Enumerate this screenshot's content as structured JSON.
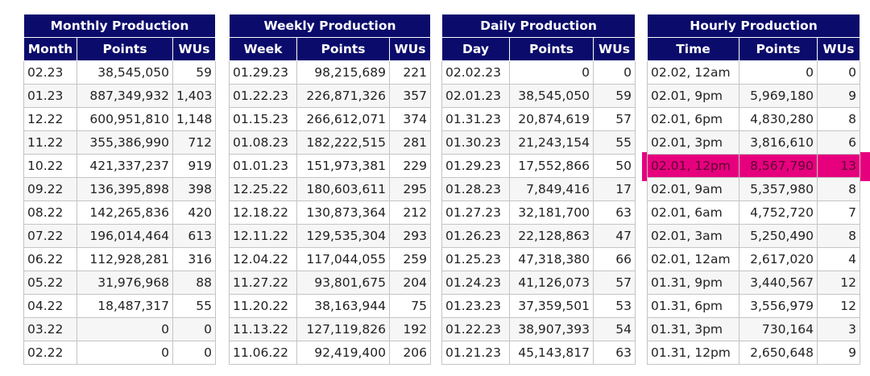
{
  "monthly": {
    "title": "Monthly Production",
    "headers": [
      "Month",
      "Points",
      "WUs"
    ],
    "rows": [
      [
        "02.23",
        "38,545,050",
        "59"
      ],
      [
        "01.23",
        "887,349,932",
        "1,403"
      ],
      [
        "12.22",
        "600,951,810",
        "1,148"
      ],
      [
        "11.22",
        "355,386,990",
        "712"
      ],
      [
        "10.22",
        "421,337,237",
        "919"
      ],
      [
        "09.22",
        "136,395,898",
        "398"
      ],
      [
        "08.22",
        "142,265,836",
        "420"
      ],
      [
        "07.22",
        "196,014,464",
        "613"
      ],
      [
        "06.22",
        "112,928,281",
        "316"
      ],
      [
        "05.22",
        "31,976,968",
        "88"
      ],
      [
        "04.22",
        "18,487,317",
        "55"
      ],
      [
        "03.22",
        "0",
        "0"
      ],
      [
        "02.22",
        "0",
        "0"
      ]
    ]
  },
  "weekly": {
    "title": "Weekly Production",
    "headers": [
      "Week",
      "Points",
      "WUs"
    ],
    "rows": [
      [
        "01.29.23",
        "98,215,689",
        "221"
      ],
      [
        "01.22.23",
        "226,871,326",
        "357"
      ],
      [
        "01.15.23",
        "266,612,071",
        "374"
      ],
      [
        "01.08.23",
        "182,222,515",
        "281"
      ],
      [
        "01.01.23",
        "151,973,381",
        "229"
      ],
      [
        "12.25.22",
        "180,603,611",
        "295"
      ],
      [
        "12.18.22",
        "130,873,364",
        "212"
      ],
      [
        "12.11.22",
        "129,535,304",
        "293"
      ],
      [
        "12.04.22",
        "117,044,055",
        "259"
      ],
      [
        "11.27.22",
        "93,801,675",
        "204"
      ],
      [
        "11.20.22",
        "38,163,944",
        "75"
      ],
      [
        "11.13.22",
        "127,119,826",
        "192"
      ],
      [
        "11.06.22",
        "92,419,400",
        "206"
      ]
    ]
  },
  "daily": {
    "title": "Daily Production",
    "headers": [
      "Day",
      "Points",
      "WUs"
    ],
    "rows": [
      [
        "02.02.23",
        "0",
        "0"
      ],
      [
        "02.01.23",
        "38,545,050",
        "59"
      ],
      [
        "01.31.23",
        "20,874,619",
        "57"
      ],
      [
        "01.30.23",
        "21,243,154",
        "55"
      ],
      [
        "01.29.23",
        "17,552,866",
        "50"
      ],
      [
        "01.28.23",
        "7,849,416",
        "17"
      ],
      [
        "01.27.23",
        "32,181,700",
        "63"
      ],
      [
        "01.26.23",
        "22,128,863",
        "47"
      ],
      [
        "01.25.23",
        "47,318,380",
        "66"
      ],
      [
        "01.24.23",
        "41,126,073",
        "57"
      ],
      [
        "01.23.23",
        "37,359,501",
        "53"
      ],
      [
        "01.22.23",
        "38,907,393",
        "54"
      ],
      [
        "01.21.23",
        "45,143,817",
        "63"
      ]
    ]
  },
  "hourly": {
    "title": "Hourly Production",
    "headers": [
      "Time",
      "Points",
      "WUs"
    ],
    "rows": [
      [
        "02.02, 12am",
        "0",
        "0"
      ],
      [
        "02.01, 9pm",
        "5,969,180",
        "9"
      ],
      [
        "02.01, 6pm",
        "4,830,280",
        "8"
      ],
      [
        "02.01, 3pm",
        "3,816,610",
        "6"
      ],
      [
        "02.01, 12pm",
        "8,567,790",
        "13"
      ],
      [
        "02.01, 9am",
        "5,357,980",
        "8"
      ],
      [
        "02.01, 6am",
        "4,752,720",
        "7"
      ],
      [
        "02.01, 3am",
        "5,250,490",
        "8"
      ],
      [
        "02.01, 12am",
        "2,617,020",
        "4"
      ],
      [
        "01.31, 9pm",
        "3,440,567",
        "12"
      ],
      [
        "01.31, 6pm",
        "3,556,979",
        "12"
      ],
      [
        "01.31, 3pm",
        "730,164",
        "3"
      ],
      [
        "01.31, 12pm",
        "2,650,648",
        "9"
      ]
    ],
    "highlight_row_index": 4,
    "highlight_color": "#e6007e"
  },
  "colors": {
    "header_bg": "#0b0b6b",
    "header_text": "#ffffff",
    "alt_row": "#f6f6f6"
  }
}
